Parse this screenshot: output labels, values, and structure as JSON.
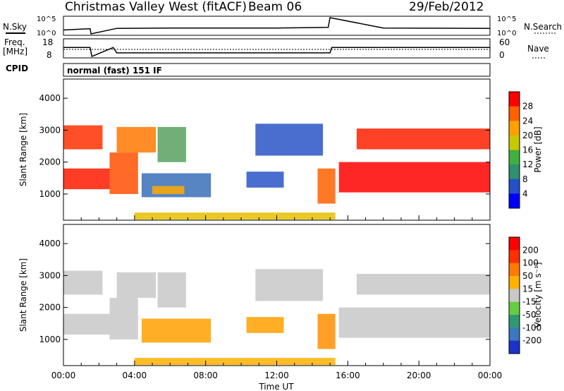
{
  "header": {
    "station": "Christmas Valley West (fitACF)",
    "beam": "Beam 06",
    "date": "29/Feb/2012"
  },
  "panels": {
    "nsky_label": "N.Sky",
    "nsearch_label": "N.Search",
    "freq_label_1": "Freq.",
    "freq_label_2": "[MHz]",
    "nave_label": "Nave",
    "cpid_label": "CPID",
    "cpid_text": "normal (fast) 151 IF",
    "nsky_ticks": [
      "10^5",
      "10^0"
    ],
    "nsearch_ticks": [
      "10^5",
      "10^0"
    ],
    "freq_ticks": [
      "18",
      "8"
    ],
    "nave_ticks": [
      "60",
      "0"
    ]
  },
  "chart_data": [
    {
      "type": "line",
      "name": "N.Sky / N.Search",
      "ylim_log10": [
        0,
        5
      ],
      "x": [
        0,
        1.5,
        1.55,
        3,
        6,
        9,
        12,
        14.9,
        15,
        18,
        24
      ],
      "values": [
        1.2,
        1.6,
        0.0,
        1.7,
        1.8,
        1.8,
        1.8,
        2.0,
        5.0,
        1.8,
        1.7
      ]
    },
    {
      "type": "line",
      "name": "Freq",
      "ylim": [
        8,
        18
      ],
      "x": [
        0,
        1.5,
        1.6,
        2.8,
        3.0,
        15.0,
        15.1,
        24
      ],
      "values": [
        13.5,
        13.5,
        8,
        13.5,
        10.2,
        10.2,
        13.5,
        13.5
      ],
      "nave_level": 33
    },
    {
      "type": "heatmap",
      "name": "Power",
      "xlabel": "Time UT",
      "ylabel": "Slant Range [km]",
      "xlim": [
        0,
        24
      ],
      "ylim": [
        180,
        4600
      ],
      "x_ticks": [
        "00:00",
        "04:00",
        "08:00",
        "12:00",
        "16:00",
        "20:00",
        "00:00"
      ],
      "y_ticks": [
        1000,
        2000,
        3000,
        4000
      ],
      "colorbar": {
        "label": "Power [dB]",
        "ticks": [
          "4",
          "8",
          "12",
          "16",
          "20",
          "24",
          "28"
        ],
        "colors": [
          "#0000ff",
          "#2450c8",
          "#2f8f6e",
          "#41b040",
          "#c8c800",
          "#ffa000",
          "#ff6000",
          "#ff0000"
        ]
      },
      "regions": [
        {
          "t0": 0.0,
          "t1": 2.6,
          "r0": 1150,
          "r1": 1800,
          "color": "#ff1a00"
        },
        {
          "t0": 0.0,
          "t1": 2.2,
          "r0": 2400,
          "r1": 3150,
          "color": "#ff3000"
        },
        {
          "t0": 2.6,
          "t1": 4.2,
          "r0": 1000,
          "r1": 2300,
          "color": "#ff5000"
        },
        {
          "t0": 3.0,
          "t1": 5.2,
          "r0": 2300,
          "r1": 3100,
          "color": "#ff7800"
        },
        {
          "t0": 5.3,
          "t1": 6.9,
          "r0": 2000,
          "r1": 3100,
          "color": "#58a060"
        },
        {
          "t0": 4.4,
          "t1": 8.3,
          "r0": 900,
          "r1": 1650,
          "color": "#3a70b8"
        },
        {
          "t0": 5.0,
          "t1": 6.8,
          "r0": 1000,
          "r1": 1250,
          "color": "#ffaa00"
        },
        {
          "t0": 10.8,
          "t1": 14.6,
          "r0": 2200,
          "r1": 3200,
          "color": "#2a55c8"
        },
        {
          "t0": 10.3,
          "t1": 12.4,
          "r0": 1200,
          "r1": 1700,
          "color": "#2a55c8"
        },
        {
          "t0": 14.3,
          "t1": 15.3,
          "r0": 700,
          "r1": 1800,
          "color": "#ff6000"
        },
        {
          "t0": 15.5,
          "t1": 24.0,
          "r0": 1050,
          "r1": 2000,
          "color": "#ff0000"
        },
        {
          "t0": 16.5,
          "t1": 24.0,
          "r0": 2400,
          "r1": 3050,
          "color": "#ff2000"
        },
        {
          "t0": 4.0,
          "t1": 15.3,
          "r0": 200,
          "r1": 420,
          "color": "#e6c000"
        }
      ]
    },
    {
      "type": "heatmap",
      "name": "Velocity",
      "xlabel": "Time UT",
      "ylabel": "Slant Range [km]",
      "xlim": [
        0,
        24
      ],
      "ylim": [
        180,
        4600
      ],
      "x_ticks": [
        "00:00",
        "04:00",
        "08:00",
        "12:00",
        "16:00",
        "20:00",
        "00:00"
      ],
      "y_ticks": [
        1000,
        2000,
        3000,
        4000
      ],
      "colorbar": {
        "label": "Velocity [m s⁻¹]",
        "ticks": [
          "200",
          "100",
          "50",
          "15",
          "-15",
          "-50",
          "-100",
          "-200"
        ],
        "colors": [
          "#1a33c8",
          "#3a78c0",
          "#2f9a70",
          "#66cc44",
          "#c8c8c8",
          "#ffb000",
          "#ff7a00",
          "#ff3000",
          "#ff0000"
        ]
      },
      "regions": [
        {
          "t0": 0.0,
          "t1": 2.6,
          "r0": 1150,
          "r1": 1800,
          "color": "#c8c8c8"
        },
        {
          "t0": 0.0,
          "t1": 2.2,
          "r0": 2400,
          "r1": 3150,
          "color": "#c8c8c8"
        },
        {
          "t0": 2.6,
          "t1": 4.2,
          "r0": 1000,
          "r1": 2300,
          "color": "#c8c8c8"
        },
        {
          "t0": 3.0,
          "t1": 5.2,
          "r0": 2300,
          "r1": 3100,
          "color": "#c8c8c8"
        },
        {
          "t0": 5.3,
          "t1": 6.9,
          "r0": 2000,
          "r1": 3100,
          "color": "#c8c8c8"
        },
        {
          "t0": 4.4,
          "t1": 8.3,
          "r0": 900,
          "r1": 1650,
          "color": "#ffa000"
        },
        {
          "t0": 10.8,
          "t1": 14.6,
          "r0": 2200,
          "r1": 3200,
          "color": "#c8c8c8"
        },
        {
          "t0": 10.3,
          "t1": 12.4,
          "r0": 1200,
          "r1": 1700,
          "color": "#ffa000"
        },
        {
          "t0": 14.3,
          "t1": 15.3,
          "r0": 700,
          "r1": 1800,
          "color": "#ff9000"
        },
        {
          "t0": 15.5,
          "t1": 24.0,
          "r0": 1050,
          "r1": 2000,
          "color": "#c8c8c8"
        },
        {
          "t0": 16.5,
          "t1": 24.0,
          "r0": 2400,
          "r1": 3050,
          "color": "#c8c8c8"
        },
        {
          "t0": 4.0,
          "t1": 15.3,
          "r0": 200,
          "r1": 420,
          "color": "#ffb000"
        }
      ]
    }
  ]
}
